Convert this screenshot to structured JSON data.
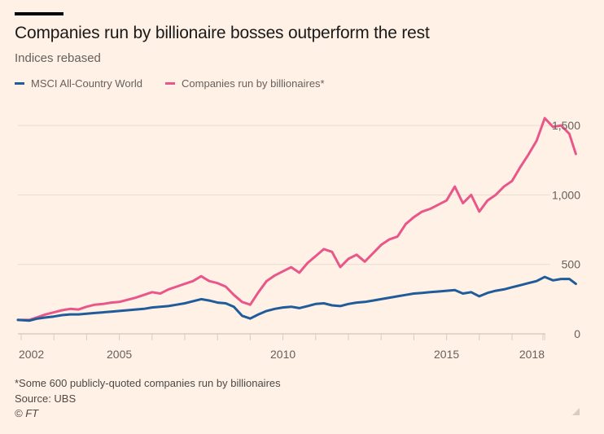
{
  "header": {
    "title": "Companies run by billionaire bosses outperform the rest",
    "subtitle": "Indices rebased"
  },
  "legend": [
    {
      "label": "MSCI All-Country World",
      "color": "#1f5c99"
    },
    {
      "label": "Companies run by billionaires*",
      "color": "#e9578a"
    }
  ],
  "footer": {
    "note": "*Some 600 publicly-quoted companies run by billionaires",
    "source": "Source: UBS",
    "copyright": "© FT"
  },
  "chart_data": {
    "type": "line",
    "title": "Companies run by billionaire bosses outperform the rest",
    "subtitle": "Indices rebased",
    "xlabel": "",
    "ylabel": "",
    "xlim": [
      2001.9,
      2018.95
    ],
    "ylim": [
      0,
      1600
    ],
    "y_ticks": [
      0,
      500,
      1000,
      1500
    ],
    "y_tick_labels": [
      "0",
      "500",
      "1,000",
      "1,500"
    ],
    "x_tick_labels": [
      {
        "year": 2002,
        "label": "2002"
      },
      {
        "year": 2005,
        "label": "2005"
      },
      {
        "year": 2010,
        "label": "2010"
      },
      {
        "year": 2015,
        "label": "2015"
      },
      {
        "year": 2018,
        "label": "2018"
      }
    ],
    "grid": true,
    "legend_position": "top-left",
    "x": [
      2001.9,
      2002.25,
      2002.5,
      2002.75,
      2003.0,
      2003.25,
      2003.5,
      2003.75,
      2004.0,
      2004.25,
      2004.5,
      2004.75,
      2005.0,
      2005.25,
      2005.5,
      2005.75,
      2006.0,
      2006.25,
      2006.5,
      2006.75,
      2007.0,
      2007.25,
      2007.5,
      2007.75,
      2008.0,
      2008.25,
      2008.5,
      2008.75,
      2009.0,
      2009.25,
      2009.5,
      2009.75,
      2010.0,
      2010.25,
      2010.5,
      2010.75,
      2011.0,
      2011.25,
      2011.5,
      2011.75,
      2012.0,
      2012.25,
      2012.5,
      2012.75,
      2013.0,
      2013.25,
      2013.5,
      2013.75,
      2014.0,
      2014.25,
      2014.5,
      2014.75,
      2015.0,
      2015.25,
      2015.5,
      2015.75,
      2016.0,
      2016.25,
      2016.5,
      2016.75,
      2017.0,
      2017.25,
      2017.5,
      2017.75,
      2018.0,
      2018.25,
      2018.5,
      2018.75,
      2018.95
    ],
    "series": [
      {
        "name": "MSCI All-Country World",
        "color": "#1f5c99",
        "values": [
          100,
          95,
          110,
          118,
          125,
          135,
          140,
          140,
          145,
          150,
          155,
          160,
          165,
          170,
          175,
          180,
          190,
          195,
          200,
          210,
          220,
          235,
          250,
          240,
          225,
          220,
          195,
          130,
          110,
          140,
          165,
          180,
          190,
          195,
          185,
          200,
          215,
          220,
          205,
          200,
          215,
          225,
          230,
          240,
          250,
          260,
          270,
          280,
          290,
          295,
          300,
          305,
          310,
          315,
          290,
          300,
          270,
          295,
          310,
          320,
          335,
          350,
          365,
          380,
          410,
          385,
          395,
          395,
          360
        ]
      },
      {
        "name": "Companies run by billionaires*",
        "color": "#e9578a",
        "values": [
          100,
          100,
          120,
          140,
          155,
          170,
          180,
          175,
          195,
          210,
          215,
          225,
          230,
          245,
          260,
          280,
          300,
          290,
          320,
          340,
          360,
          380,
          415,
          380,
          365,
          340,
          280,
          230,
          210,
          300,
          380,
          420,
          450,
          480,
          440,
          510,
          560,
          610,
          590,
          480,
          540,
          570,
          520,
          580,
          640,
          680,
          700,
          790,
          840,
          880,
          900,
          930,
          960,
          1060,
          940,
          1000,
          880,
          960,
          1000,
          1060,
          1100,
          1200,
          1290,
          1390,
          1553,
          1490,
          1500,
          1440,
          1295
        ]
      }
    ]
  }
}
